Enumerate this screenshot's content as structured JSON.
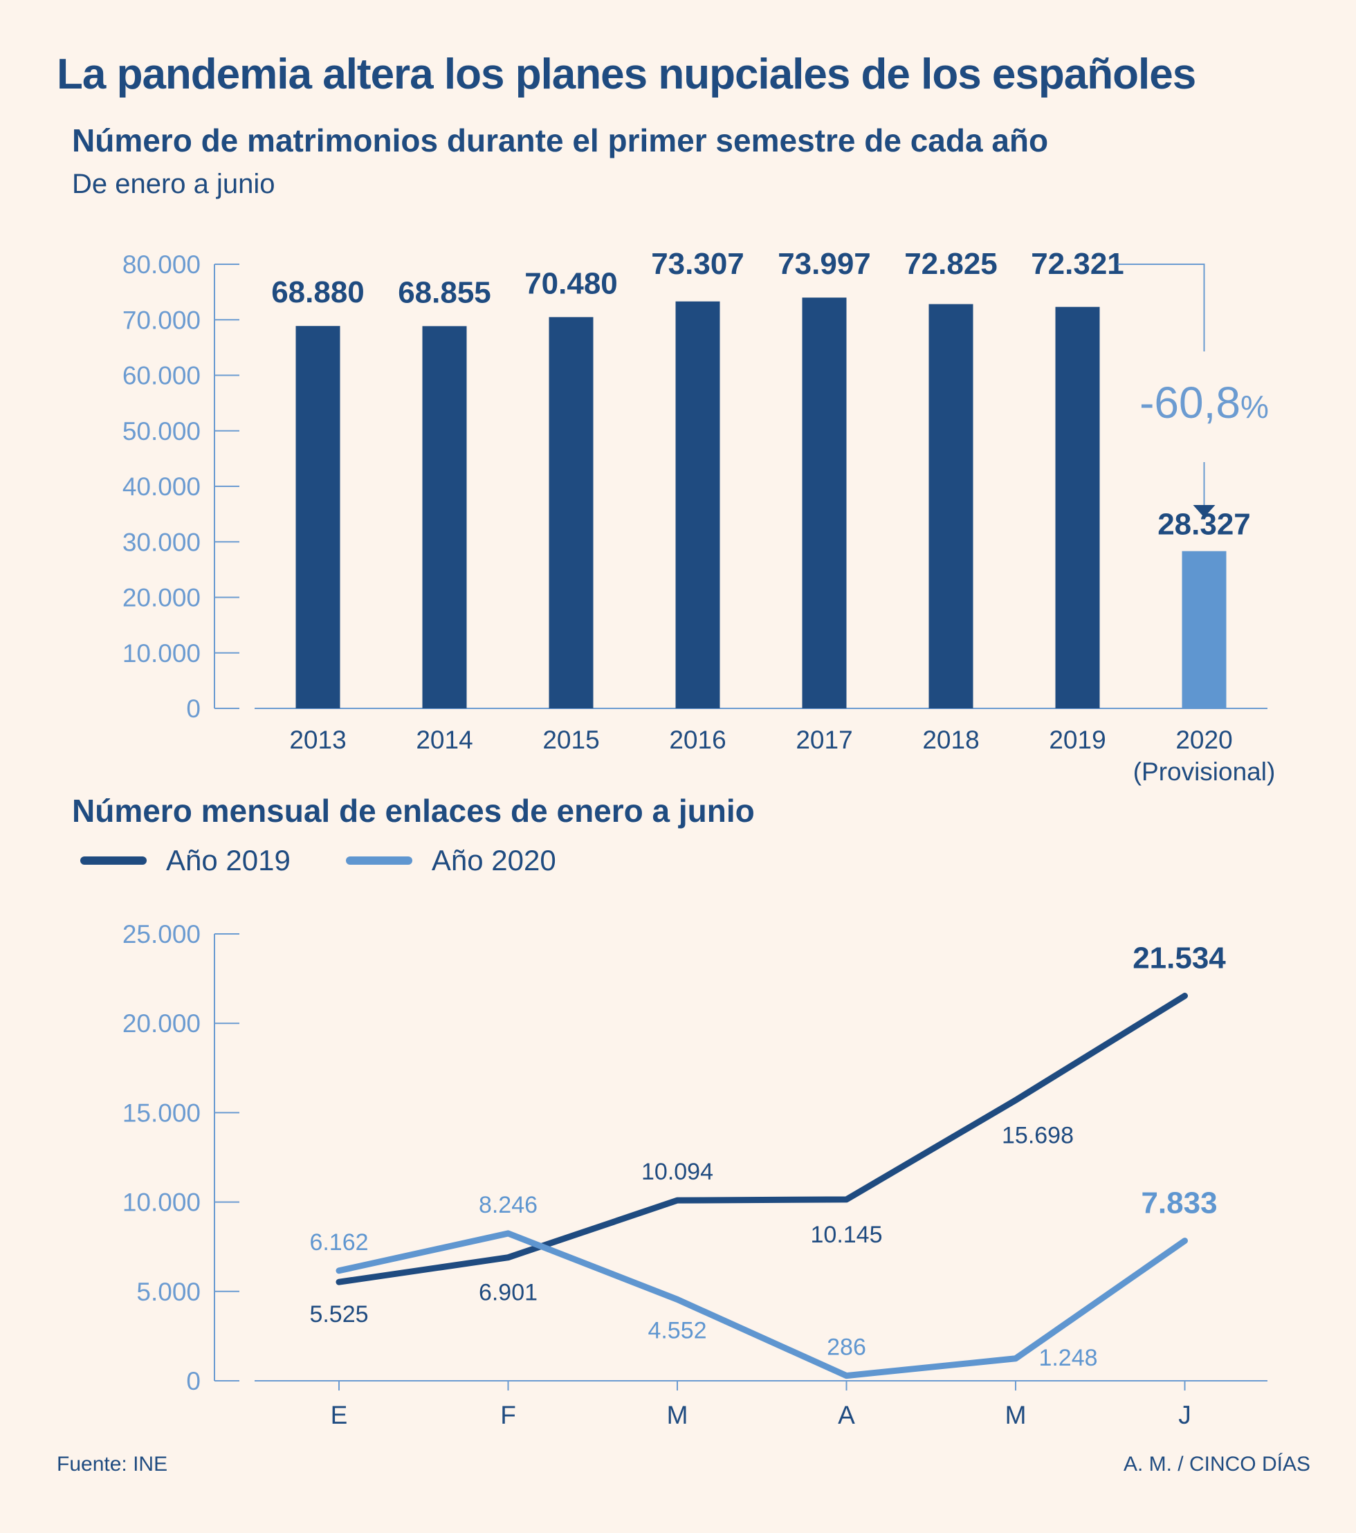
{
  "title": "La pandemia altera los planes nupciales de los españoles",
  "subtitle": "Número de matrimonios durante el primer semestre de cada año",
  "note": "De enero a junio",
  "subtitle2": "Número mensual de enlaces de enero a junio",
  "footer": {
    "source": "Fuente: INE",
    "credit": "A. M. / CINCO DÍAS"
  },
  "colors": {
    "dark": "#1f4b80",
    "light": "#5f96d0",
    "axis": "#6b9bd1",
    "background": "#fdf4ec"
  },
  "chart_data": [
    {
      "type": "bar",
      "title": "Número de matrimonios durante el primer semestre de cada año",
      "categories": [
        "2013",
        "2014",
        "2015",
        "2016",
        "2017",
        "2018",
        "2019",
        "2020"
      ],
      "category_sublabels": [
        "",
        "",
        "",
        "",
        "",
        "",
        "",
        "(Provisional)"
      ],
      "values": [
        68880,
        68855,
        70480,
        73307,
        73997,
        72825,
        72321,
        28327
      ],
      "value_labels": [
        "68.880",
        "68.855",
        "70.480",
        "73.307",
        "73.997",
        "72.825",
        "72.321",
        "28.327"
      ],
      "highlight_index": 7,
      "ylim": [
        0,
        80000
      ],
      "yticks": [
        0,
        10000,
        20000,
        30000,
        40000,
        50000,
        60000,
        70000,
        80000
      ],
      "ytick_labels": [
        "0",
        "10.000",
        "20.000",
        "30.000",
        "40.000",
        "50.000",
        "60.000",
        "70.000",
        "80.000"
      ],
      "annotation": {
        "value": "-60,8",
        "unit": "%",
        "from_index": 6,
        "to_index": 7
      },
      "grid": false
    },
    {
      "type": "line",
      "title": "Número mensual de enlaces de enero a junio",
      "categories": [
        "E",
        "F",
        "M",
        "A",
        "M",
        "J"
      ],
      "series": [
        {
          "name": "Año 2019",
          "values": [
            5525,
            6901,
            10094,
            10145,
            15698,
            21534
          ],
          "labels": [
            "5.525",
            "6.901",
            "10.094",
            "10.145",
            "15.698",
            "21.534"
          ]
        },
        {
          "name": "Año 2020",
          "values": [
            6162,
            8246,
            4552,
            286,
            1248,
            7833
          ],
          "labels": [
            "6.162",
            "8.246",
            "4.552",
            "286",
            "1.248",
            "7.833"
          ]
        }
      ],
      "ylim": [
        0,
        25000
      ],
      "yticks": [
        0,
        5000,
        10000,
        15000,
        20000,
        25000
      ],
      "ytick_labels": [
        "0",
        "5.000",
        "10.000",
        "15.000",
        "20.000",
        "25.000"
      ],
      "legend": "top-left",
      "grid": false
    }
  ]
}
